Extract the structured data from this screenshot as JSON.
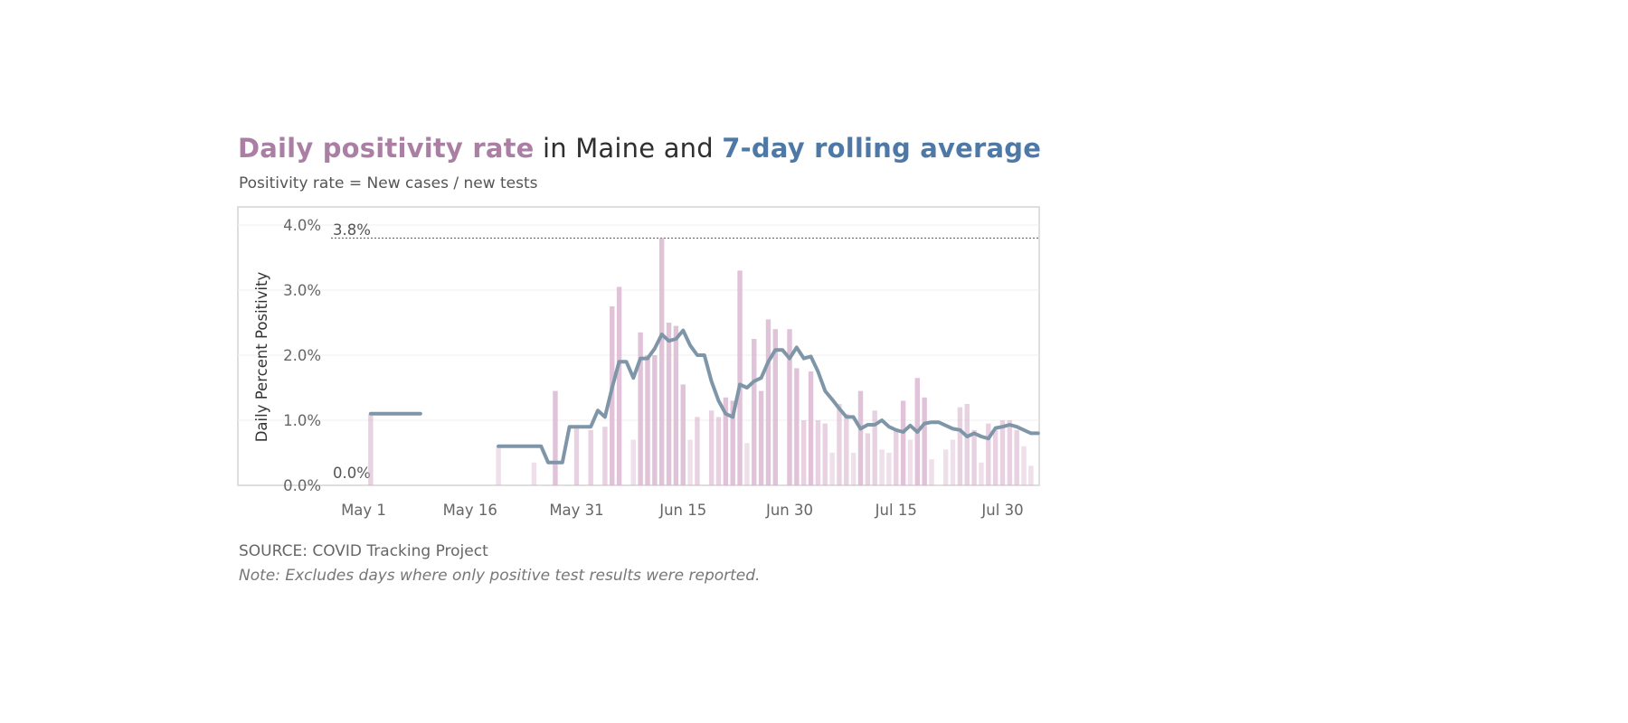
{
  "header": {
    "title_part1": "Daily positivity rate",
    "title_part2": " in Maine and ",
    "title_part3": "7-day rolling average",
    "subtitle": "Positivity rate = New cases / new tests"
  },
  "footer": {
    "source": "SOURCE: COVID Tracking Project",
    "note": "Note: Excludes days where only positive test results were reported."
  },
  "colors": {
    "title_pink": "#ab7fa4",
    "title_blue": "#4e79a7",
    "bar": "#d7b2cd",
    "line": "#7f96a8"
  },
  "chart_data": {
    "type": "bar",
    "ylabel": "Daily Percent Positivity",
    "yticks": [
      "0.0%",
      "1.0%",
      "2.0%",
      "3.0%",
      "4.0%"
    ],
    "ytick_values": [
      0,
      1,
      2,
      3,
      4
    ],
    "xticks": [
      "May 1",
      "May 16",
      "May 31",
      "Jun 15",
      "Jun 30",
      "Jul 15",
      "Jul 30"
    ],
    "xtick_days": [
      0,
      15,
      30,
      45,
      60,
      75,
      90
    ],
    "ylim": [
      0,
      4.2
    ],
    "max_reference": {
      "value": 3.8,
      "label": "3.8%"
    },
    "min_reference": {
      "value": 0.0,
      "label": "0.0%"
    },
    "grid": true,
    "start_date": "May 1",
    "series": [
      {
        "name": "Daily positivity rate",
        "type": "bar",
        "points": [
          [
            1,
            1.1
          ],
          [
            19,
            0.6
          ],
          [
            24,
            0.35
          ],
          [
            27,
            1.45
          ],
          [
            30,
            0.9
          ],
          [
            32,
            0.85
          ],
          [
            34,
            0.9
          ],
          [
            35,
            2.75
          ],
          [
            36,
            3.05
          ],
          [
            38,
            0.7
          ],
          [
            39,
            2.35
          ],
          [
            40,
            2.0
          ],
          [
            41,
            2.0
          ],
          [
            42,
            3.8
          ],
          [
            43,
            2.5
          ],
          [
            44,
            2.45
          ],
          [
            45,
            1.55
          ],
          [
            46,
            0.7
          ],
          [
            47,
            1.05
          ],
          [
            49,
            1.15
          ],
          [
            50,
            1.05
          ],
          [
            51,
            1.35
          ],
          [
            52,
            1.3
          ],
          [
            53,
            3.3
          ],
          [
            54,
            0.65
          ],
          [
            55,
            2.25
          ],
          [
            56,
            1.45
          ],
          [
            57,
            2.55
          ],
          [
            58,
            2.4
          ],
          [
            60,
            2.4
          ],
          [
            61,
            1.8
          ],
          [
            62,
            1.0
          ],
          [
            63,
            1.75
          ],
          [
            64,
            1.0
          ],
          [
            65,
            0.95
          ],
          [
            66,
            0.5
          ],
          [
            67,
            1.25
          ],
          [
            68,
            1.1
          ],
          [
            69,
            0.5
          ],
          [
            70,
            1.45
          ],
          [
            71,
            0.8
          ],
          [
            72,
            1.15
          ],
          [
            73,
            0.55
          ],
          [
            74,
            0.5
          ],
          [
            75,
            0.85
          ],
          [
            76,
            1.3
          ],
          [
            77,
            0.7
          ],
          [
            78,
            1.65
          ],
          [
            79,
            1.35
          ],
          [
            80,
            0.4
          ],
          [
            82,
            0.55
          ],
          [
            83,
            0.7
          ],
          [
            84,
            1.2
          ],
          [
            85,
            1.25
          ],
          [
            86,
            0.85
          ],
          [
            87,
            0.35
          ],
          [
            88,
            0.95
          ],
          [
            89,
            0.85
          ],
          [
            90,
            1.0
          ],
          [
            91,
            1.0
          ],
          [
            92,
            0.85
          ],
          [
            93,
            0.6
          ],
          [
            94,
            0.3
          ]
        ]
      },
      {
        "name": "7-day rolling average",
        "type": "line",
        "segments": [
          [
            [
              1,
              1.1
            ],
            [
              8,
              1.1
            ]
          ],
          [
            [
              19,
              0.6
            ],
            [
              25,
              0.6
            ],
            [
              26,
              0.35
            ],
            [
              28,
              0.35
            ],
            [
              29,
              0.9
            ],
            [
              31,
              0.9
            ],
            [
              32,
              0.9
            ],
            [
              33,
              1.15
            ],
            [
              34,
              1.05
            ],
            [
              35,
              1.5
            ],
            [
              36,
              1.9
            ],
            [
              37,
              1.9
            ],
            [
              38,
              1.65
            ],
            [
              39,
              1.95
            ],
            [
              40,
              1.95
            ],
            [
              41,
              2.1
            ],
            [
              42,
              2.32
            ],
            [
              43,
              2.22
            ],
            [
              44,
              2.25
            ],
            [
              45,
              2.38
            ],
            [
              46,
              2.15
            ],
            [
              47,
              2.0
            ],
            [
              48,
              2.0
            ],
            [
              49,
              1.6
            ],
            [
              50,
              1.3
            ],
            [
              51,
              1.1
            ],
            [
              52,
              1.05
            ],
            [
              53,
              1.55
            ],
            [
              54,
              1.5
            ],
            [
              55,
              1.6
            ],
            [
              56,
              1.65
            ],
            [
              57,
              1.9
            ],
            [
              58,
              2.08
            ],
            [
              59,
              2.08
            ],
            [
              60,
              1.95
            ],
            [
              61,
              2.12
            ],
            [
              62,
              1.95
            ],
            [
              63,
              1.98
            ],
            [
              64,
              1.75
            ],
            [
              65,
              1.45
            ],
            [
              66,
              1.32
            ],
            [
              67,
              1.18
            ],
            [
              68,
              1.05
            ],
            [
              69,
              1.05
            ],
            [
              70,
              0.87
            ],
            [
              71,
              0.93
            ],
            [
              72,
              0.93
            ],
            [
              73,
              1.0
            ],
            [
              74,
              0.9
            ],
            [
              75,
              0.85
            ],
            [
              76,
              0.82
            ],
            [
              77,
              0.92
            ],
            [
              78,
              0.82
            ],
            [
              79,
              0.95
            ],
            [
              80,
              0.97
            ],
            [
              81,
              0.97
            ],
            [
              82,
              0.92
            ],
            [
              83,
              0.87
            ],
            [
              84,
              0.85
            ],
            [
              85,
              0.75
            ],
            [
              86,
              0.8
            ],
            [
              87,
              0.75
            ],
            [
              88,
              0.72
            ],
            [
              89,
              0.88
            ],
            [
              90,
              0.9
            ],
            [
              91,
              0.93
            ],
            [
              92,
              0.9
            ],
            [
              93,
              0.85
            ],
            [
              94,
              0.8
            ],
            [
              95,
              0.8
            ]
          ]
        ]
      }
    ]
  }
}
